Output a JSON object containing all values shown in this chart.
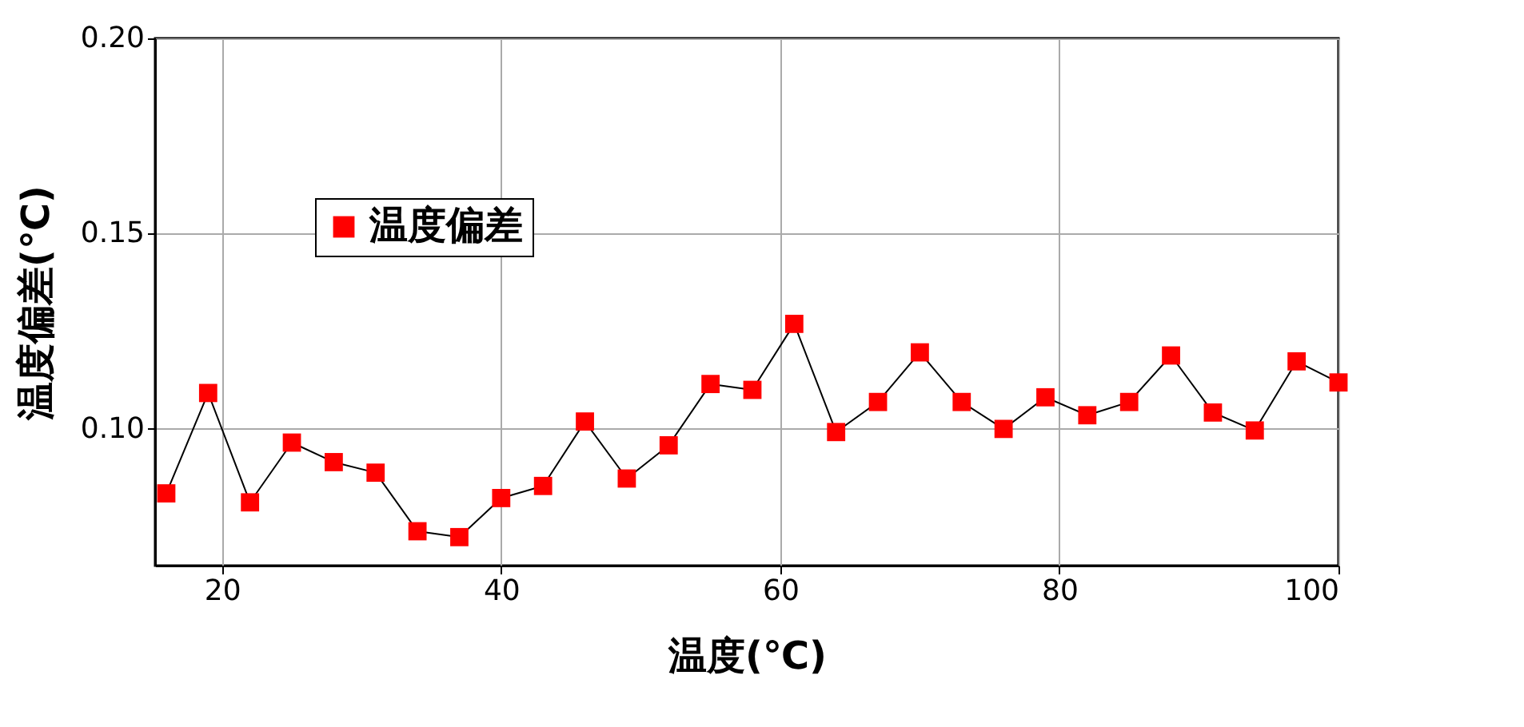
{
  "chart_data": {
    "type": "line",
    "xlabel": "温度(℃)",
    "ylabel": "温度偏差(℃)",
    "x": [
      16,
      19,
      22,
      25,
      28,
      31,
      34,
      37,
      40,
      43,
      46,
      49,
      52,
      55,
      58,
      61,
      64,
      67,
      70,
      73,
      76,
      79,
      82,
      85,
      88,
      91,
      94,
      97,
      100
    ],
    "series": [
      {
        "name": "温度偏差",
        "color": "#ff0000",
        "values": [
          0.0835,
          0.1092,
          0.0812,
          0.0965,
          0.0915,
          0.0888,
          0.0738,
          0.0723,
          0.0823,
          0.0854,
          0.1019,
          0.0873,
          0.0958,
          0.1115,
          0.11,
          0.1269,
          0.0992,
          0.1069,
          0.1196,
          0.1069,
          0.1,
          0.1081,
          0.1035,
          0.1069,
          0.1188,
          0.1042,
          0.0996,
          0.1173,
          0.1119
        ]
      }
    ],
    "xlim": [
      15.2,
      100
    ],
    "ylim": [
      0.065,
      0.2
    ],
    "xticks": [
      20,
      40,
      60,
      80,
      100
    ],
    "yticks": [
      {
        "value": 0.1,
        "label": "0.10"
      },
      0.15,
      {
        "value": 0.2,
        "label": "0.20"
      }
    ],
    "grid": true,
    "legend": "top left",
    "marker": "square",
    "line_style": "solid"
  }
}
